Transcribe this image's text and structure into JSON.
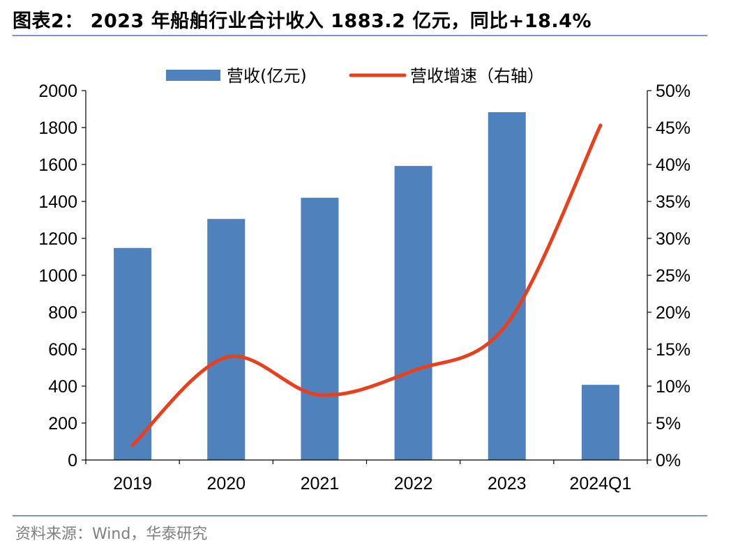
{
  "header": {
    "title": "图表2： 2023 年船舶行业合计收入 1883.2 亿元，同比+18.4%"
  },
  "footer": {
    "source": "资料来源：Wind，华泰研究"
  },
  "chart_data": {
    "type": "bar+line",
    "title": "图表2： 2023 年船舶行业合计收入 1883.2 亿元，同比+18.4%",
    "categories": [
      "2019",
      "2020",
      "2021",
      "2022",
      "2023",
      "2024Q1"
    ],
    "series": [
      {
        "name": "营收(亿元)",
        "type": "bar",
        "axis": "left",
        "color": "#4f81bd",
        "values": [
          1148,
          1305,
          1420,
          1592,
          1883.2,
          407
        ]
      },
      {
        "name": "营收增速（右轴）",
        "type": "line",
        "axis": "right",
        "color": "#e8401c",
        "smooth": true,
        "values": [
          2.0,
          13.9,
          8.8,
          12.1,
          18.4,
          45.3
        ]
      }
    ],
    "y_left": {
      "min": 0,
      "max": 2000,
      "step": 200,
      "tick_labels": [
        "0",
        "200",
        "400",
        "600",
        "800",
        "1000",
        "1200",
        "1400",
        "1600",
        "1800",
        "2000"
      ]
    },
    "y_right": {
      "min": 0,
      "max": 50,
      "step": 5,
      "unit": "%",
      "tick_labels": [
        "0%",
        "5%",
        "10%",
        "15%",
        "20%",
        "25%",
        "30%",
        "35%",
        "40%",
        "45%",
        "50%"
      ]
    },
    "legend": {
      "placement": "top-center",
      "entries": [
        "营收(亿元)",
        "营收增速（右轴）"
      ]
    },
    "grid": false
  }
}
